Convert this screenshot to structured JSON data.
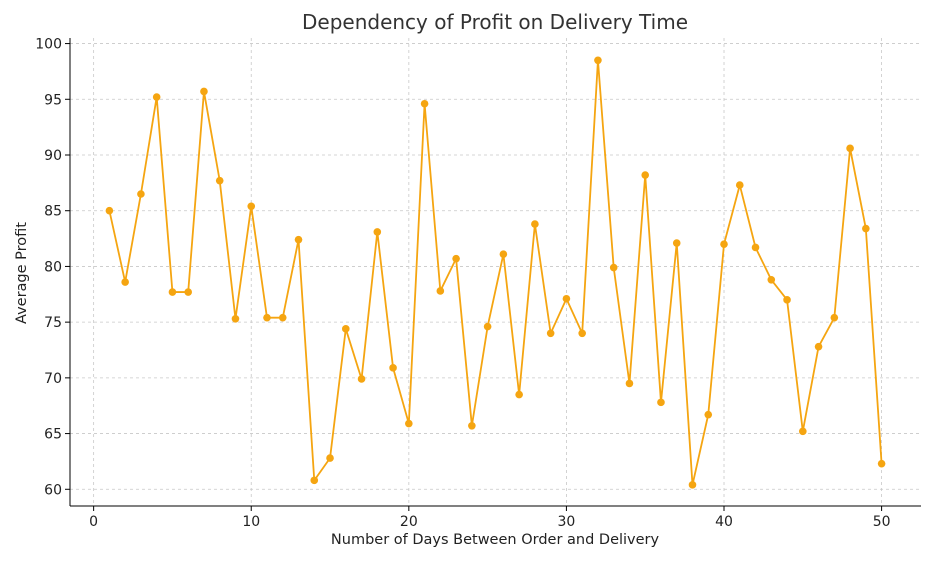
{
  "chart_data": {
    "type": "line",
    "title": "Dependency of Profit on Delivery Time",
    "xlabel": "Number of Days Between Order and Delivery",
    "ylabel": "Average Profit",
    "xlim": [
      -1.5,
      52.5
    ],
    "ylim": [
      58.5,
      100.5
    ],
    "xticks": [
      0,
      10,
      20,
      30,
      40,
      50
    ],
    "yticks": [
      60,
      65,
      70,
      75,
      80,
      85,
      90,
      95,
      100
    ],
    "grid": true,
    "series": [
      {
        "color": "#f5a511",
        "x": [
          1,
          2,
          3,
          4,
          5,
          6,
          7,
          8,
          9,
          10,
          11,
          12,
          13,
          14,
          15,
          16,
          17,
          18,
          19,
          20,
          21,
          22,
          23,
          24,
          25,
          26,
          27,
          28,
          29,
          30,
          31,
          32,
          33,
          34,
          35,
          36,
          37,
          38,
          39,
          40,
          41,
          42,
          43,
          44,
          45,
          46,
          47,
          48,
          49,
          50
        ],
        "y": [
          85.0,
          78.6,
          86.5,
          95.2,
          77.7,
          77.7,
          95.7,
          87.7,
          75.3,
          85.4,
          75.4,
          75.4,
          82.4,
          60.8,
          62.8,
          74.4,
          69.9,
          83.1,
          70.9,
          65.9,
          94.6,
          77.8,
          80.7,
          65.7,
          74.6,
          81.1,
          68.5,
          83.8,
          74.0,
          77.1,
          74.0,
          98.5,
          79.9,
          69.5,
          88.2,
          67.8,
          82.1,
          60.4,
          66.7,
          82.0,
          87.3,
          81.7,
          78.8,
          77.0,
          65.2,
          72.8,
          75.4,
          90.6,
          83.4,
          62.3
        ]
      }
    ]
  }
}
